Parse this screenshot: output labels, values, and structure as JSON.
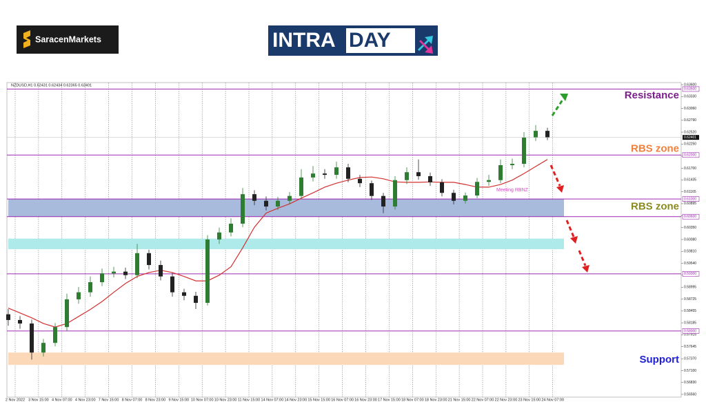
{
  "header": {
    "broker": "SaracenMarkets",
    "brand_a": "INTRA",
    "brand_b": "DAY"
  },
  "chart_data": {
    "type": "candlestick",
    "title": "NZDUSD,H1 0.62431 0.62434 0.62365 0.62401",
    "x_labels": [
      "2 Nov 2022",
      "3 Nov 15:00",
      "4 Nov 07:00",
      "4 Nov 23:00",
      "7 Nov 15:00",
      "8 Nov 07:00",
      "8 Nov 23:00",
      "9 Nov 15:00",
      "10 Nov 07:00",
      "10 Nov 23:00",
      "11 Nov 15:00",
      "14 Nov 07:00",
      "14 Nov 23:00",
      "15 Nov 15:00",
      "16 Nov 07:00",
      "16 Nov 23:00",
      "17 Nov 15:00",
      "18 Nov 07:00",
      "18 Nov 23:00",
      "21 Nov 15:00",
      "22 Nov 07:00",
      "22 Nov 23:00",
      "23 Nov 15:00",
      "24 Nov 07:00"
    ],
    "open": [
      0.5838,
      0.5825,
      0.5817,
      0.5751,
      0.5773,
      0.5809,
      0.5872,
      0.5888,
      0.5911,
      0.5931,
      0.5935,
      0.5927,
      0.5977,
      0.595,
      0.5924,
      0.5888,
      0.588,
      0.5864,
      0.6008,
      0.6024,
      0.6044,
      0.6111,
      0.6096,
      0.6083,
      0.6096,
      0.6107,
      0.6149,
      0.6158,
      0.6155,
      0.6172,
      0.6146,
      0.6136,
      0.6107,
      0.6083,
      0.6143,
      0.6161,
      0.6152,
      0.6138,
      0.6114,
      0.6096,
      0.6108,
      0.6139,
      0.6143,
      0.6177,
      0.618,
      0.624,
      0.6255
    ],
    "high": [
      0.585,
      0.5834,
      0.5826,
      0.5782,
      0.5818,
      0.5885,
      0.59,
      0.5924,
      0.5942,
      0.5946,
      0.5944,
      0.5998,
      0.5985,
      0.596,
      0.5932,
      0.5896,
      0.5889,
      0.6018,
      0.6035,
      0.6056,
      0.6125,
      0.612,
      0.6106,
      0.6105,
      0.6116,
      0.6168,
      0.6175,
      0.6168,
      0.6185,
      0.618,
      0.6155,
      0.6142,
      0.6114,
      0.6152,
      0.6172,
      0.619,
      0.616,
      0.6145,
      0.6121,
      0.6115,
      0.6148,
      0.6155,
      0.619,
      0.6192,
      0.6252,
      0.6268,
      0.6262
    ],
    "low": [
      0.5812,
      0.5805,
      0.5735,
      0.5742,
      0.5765,
      0.58,
      0.5862,
      0.5878,
      0.5902,
      0.5922,
      0.5918,
      0.592,
      0.594,
      0.5915,
      0.5878,
      0.587,
      0.585,
      0.5858,
      0.5998,
      0.6015,
      0.6036,
      0.6086,
      0.6074,
      0.6075,
      0.6088,
      0.61,
      0.614,
      0.6146,
      0.6146,
      0.6138,
      0.6127,
      0.6098,
      0.6068,
      0.6076,
      0.6134,
      0.6144,
      0.613,
      0.6106,
      0.6088,
      0.609,
      0.6102,
      0.613,
      0.6136,
      0.6168,
      0.6172,
      0.6232,
      0.6234
    ],
    "close": [
      0.5825,
      0.5817,
      0.5751,
      0.5773,
      0.5809,
      0.5872,
      0.5888,
      0.5911,
      0.5931,
      0.5935,
      0.5927,
      0.5977,
      0.595,
      0.5924,
      0.5888,
      0.588,
      0.5864,
      0.6008,
      0.6024,
      0.6044,
      0.6111,
      0.6096,
      0.6083,
      0.6096,
      0.6107,
      0.6149,
      0.6158,
      0.6155,
      0.6172,
      0.6146,
      0.6136,
      0.6107,
      0.6083,
      0.6143,
      0.6161,
      0.6152,
      0.6138,
      0.6114,
      0.6096,
      0.6108,
      0.6139,
      0.6143,
      0.6177,
      0.618,
      0.624,
      0.6255,
      0.62401
    ],
    "up_color": "#2e7d32",
    "down_color": "#222222",
    "ma": {
      "color": "#d32f2f",
      "values": [
        0.5852,
        0.5841,
        0.583,
        0.5817,
        0.5809,
        0.5817,
        0.5833,
        0.5849,
        0.5867,
        0.5888,
        0.5908,
        0.5924,
        0.5933,
        0.5938,
        0.5933,
        0.5924,
        0.5914,
        0.5914,
        0.5927,
        0.5946,
        0.5989,
        0.6036,
        0.6068,
        0.6079,
        0.6089,
        0.6102,
        0.6114,
        0.6127,
        0.6136,
        0.6143,
        0.6149,
        0.615,
        0.6146,
        0.6139,
        0.6138,
        0.6138,
        0.6139,
        0.6138,
        0.6138,
        0.6133,
        0.6127,
        0.6127,
        0.6133,
        0.6143,
        0.6158,
        0.6174,
        0.619
      ]
    },
    "ylim": [
      0.56497,
      0.63647
    ],
    "yticks": [
      {
        "value": 0.636,
        "label": "0.63600"
      },
      {
        "value": 0.6333,
        "label": "0.63330"
      },
      {
        "value": 0.6306,
        "label": "0.63060"
      },
      {
        "value": 0.6279,
        "label": "0.62790"
      },
      {
        "value": 0.6252,
        "label": "0.62520"
      },
      {
        "value": 0.6225,
        "label": "0.62250"
      },
      {
        "value": 0.61975,
        "label": "0.61975"
      },
      {
        "value": 0.617,
        "label": "0.61700"
      },
      {
        "value": 0.61435,
        "label": "0.61435"
      },
      {
        "value": 0.61165,
        "label": "0.61165"
      },
      {
        "value": 0.60895,
        "label": "0.60895"
      },
      {
        "value": 0.6062,
        "label": "0.60620"
      },
      {
        "value": 0.6035,
        "label": "0.60350"
      },
      {
        "value": 0.6008,
        "label": "0.60080"
      },
      {
        "value": 0.5981,
        "label": "0.59810"
      },
      {
        "value": 0.5954,
        "label": "0.59540"
      },
      {
        "value": 0.5927,
        "label": "0.59270"
      },
      {
        "value": 0.58995,
        "label": "0.58995"
      },
      {
        "value": 0.58725,
        "label": "0.58725"
      },
      {
        "value": 0.58455,
        "label": "0.58455"
      },
      {
        "value": 0.58185,
        "label": "0.58185"
      },
      {
        "value": 0.57915,
        "label": "0.57915"
      },
      {
        "value": 0.57645,
        "label": "0.57645"
      },
      {
        "value": 0.5737,
        "label": "0.57370"
      },
      {
        "value": 0.571,
        "label": "0.57100"
      },
      {
        "value": 0.5683,
        "label": "0.56830"
      },
      {
        "value": 0.5656,
        "label": "0.56560"
      }
    ],
    "levels": [
      {
        "value": 0.635,
        "label": "0.63500"
      },
      {
        "value": 0.62,
        "label": "0.62000"
      },
      {
        "value": 0.61,
        "label": "0.61000"
      },
      {
        "value": 0.606,
        "label": "0.60600"
      },
      {
        "value": 0.593,
        "label": "0.59300"
      },
      {
        "value": 0.58,
        "label": "0.58000"
      }
    ],
    "level_color": "#9c27b0",
    "current_price": {
      "value": 0.62401,
      "label": "0.62401"
    },
    "zones": [
      {
        "from": 0.606,
        "to": 0.61,
        "color": "#a9bbdc"
      },
      {
        "from": 0.5986,
        "to": 0.601,
        "color": "#aeeaea"
      },
      {
        "from": 0.5723,
        "to": 0.5751,
        "color": "#fbd9b8"
      }
    ],
    "annotations": [
      {
        "text": "Resistance",
        "value": 0.6335,
        "color": "#7b1f8a"
      },
      {
        "text": "RBS zone",
        "value": 0.6214,
        "color": "#f0803c"
      },
      {
        "text": "RBS zone",
        "value": 0.6082,
        "color": "#8a8a1e"
      },
      {
        "text": "Support",
        "value": 0.5734,
        "color": "#1f1fd6"
      }
    ],
    "note": {
      "text": "Meeting RBNZ",
      "value": 0.612,
      "color": "#d050c0"
    }
  }
}
